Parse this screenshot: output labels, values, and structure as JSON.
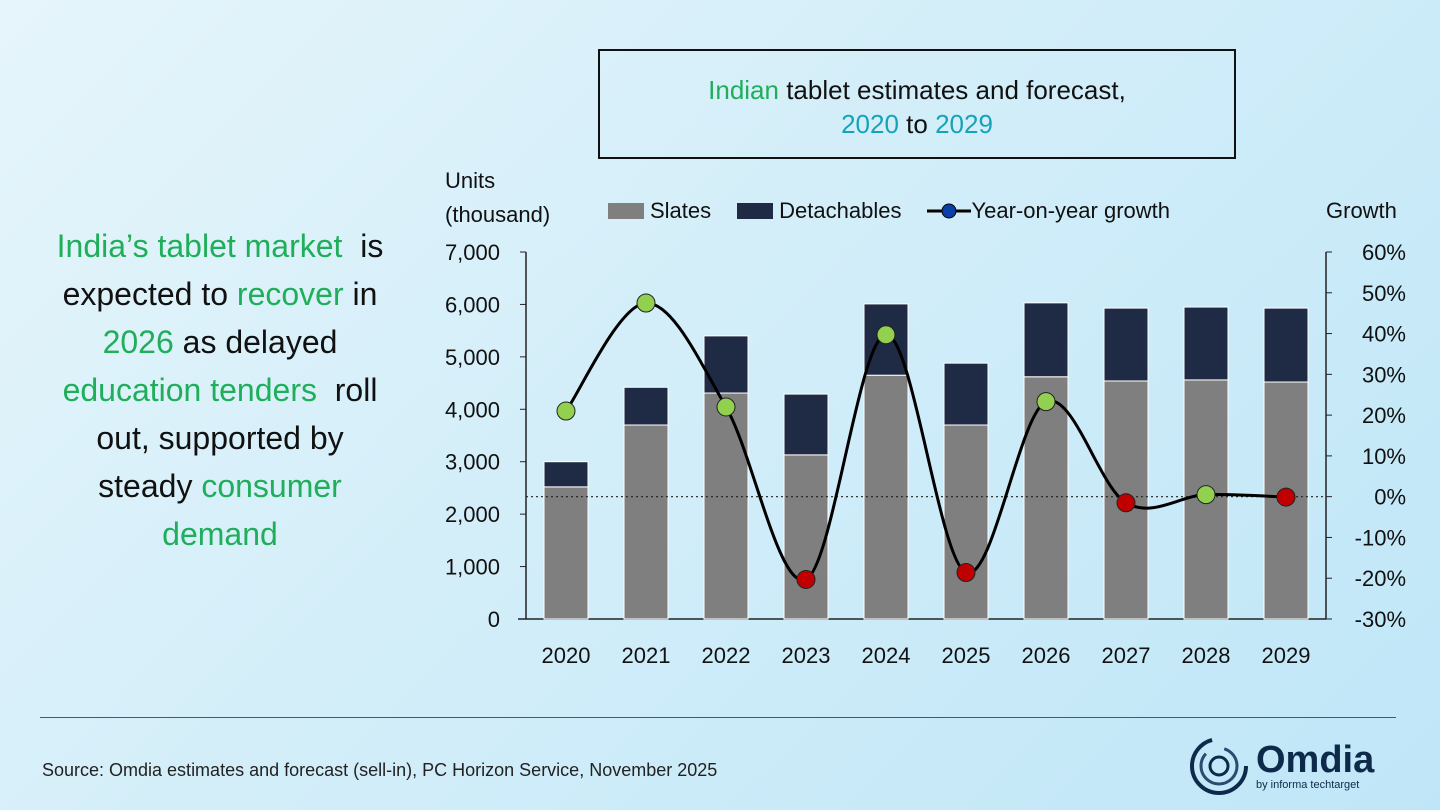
{
  "title": {
    "p1": "Indian",
    "p2": " tablet estimates and forecast,",
    "p3": "2020",
    "p4": " to ",
    "p5": "2029"
  },
  "lead_text": [
    [
      {
        "t": "India’s tablet market",
        "h": true
      },
      {
        "t": "  is",
        "h": false
      }
    ],
    [
      {
        "t": "expected to ",
        "h": false
      },
      {
        "t": "recover",
        "h": true
      },
      {
        "t": " in",
        "h": false
      }
    ],
    [
      {
        "t": "2026",
        "h": true
      },
      {
        "t": " as delayed",
        "h": false
      }
    ],
    [
      {
        "t": "education tenders",
        "h": true
      },
      {
        "t": "  roll",
        "h": false
      }
    ],
    [
      {
        "t": "out, supported by",
        "h": false
      }
    ],
    [
      {
        "t": "steady ",
        "h": false
      },
      {
        "t": "consumer",
        "h": true
      }
    ],
    [
      {
        "t": "demand",
        "h": true
      }
    ]
  ],
  "colors": {
    "slates": "#7f7f7f",
    "detachables": "#1f2a44",
    "line": "#000000",
    "positive_marker": "#92d050",
    "negative_marker": "#c00000",
    "legend_marker": "#0b3fa8",
    "highlight": "#1fae5a"
  },
  "chart_data": {
    "type": "bar+line",
    "title": "Indian tablet estimates and forecast, 2020 to 2029",
    "ylabel_left": [
      "Units",
      "(thousand)"
    ],
    "ylabel_right": "Growth",
    "categories": [
      "2020",
      "2021",
      "2022",
      "2023",
      "2024",
      "2025",
      "2026",
      "2027",
      "2028",
      "2029"
    ],
    "ylim_left": [
      0,
      7000
    ],
    "yticks_left": [
      "0",
      "1,000",
      "2,000",
      "3,000",
      "4,000",
      "5,000",
      "6,000",
      "7,000"
    ],
    "ylim_right": [
      -30,
      60
    ],
    "yticks_right": [
      "-30%",
      "-20%",
      "-10%",
      "0%",
      "10%",
      "20%",
      "30%",
      "40%",
      "50%",
      "60%"
    ],
    "stacked": true,
    "series": [
      {
        "name": "Slates",
        "type": "bar",
        "values": [
          2520,
          3700,
          4310,
          3130,
          4650,
          3700,
          4620,
          4540,
          4560,
          4520
        ]
      },
      {
        "name": "Detachables",
        "type": "bar",
        "values": [
          480,
          720,
          1090,
          1160,
          1360,
          1180,
          1410,
          1390,
          1390,
          1410
        ]
      },
      {
        "name": "Year-on-year growth",
        "type": "line",
        "axis": "right",
        "unit": "%",
        "values": [
          21,
          47.5,
          22,
          -20.3,
          39.7,
          -18.6,
          23.3,
          -1.5,
          0.5,
          -0.1
        ]
      }
    ],
    "reference_line": "0% dotted",
    "legend": "top"
  },
  "source": "Source: Omdia estimates and forecast (sell-in), PC Horizon Service, November 2025",
  "logo": {
    "name": "Omdia",
    "sub": "by informa techtarget"
  }
}
